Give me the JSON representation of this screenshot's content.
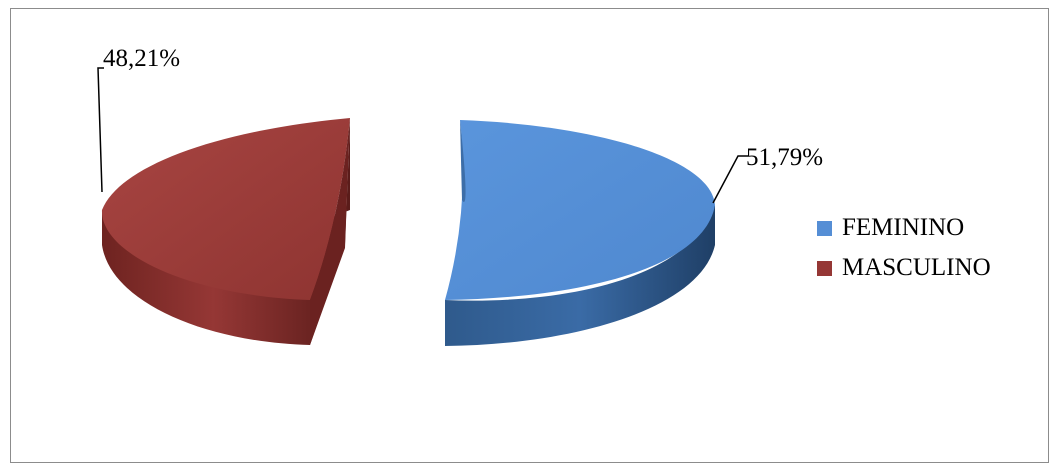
{
  "chart_data": {
    "type": "pie",
    "categories": [
      "FEMININO",
      "MASCULINO"
    ],
    "values": [
      51.79,
      48.21
    ],
    "data_labels": [
      "51,79%",
      "48,21%"
    ],
    "colors": {
      "FEMININO": "#558ed5",
      "MASCULINO": "#953735"
    },
    "legend_position": "right",
    "exploded": true,
    "three_d": true
  }
}
